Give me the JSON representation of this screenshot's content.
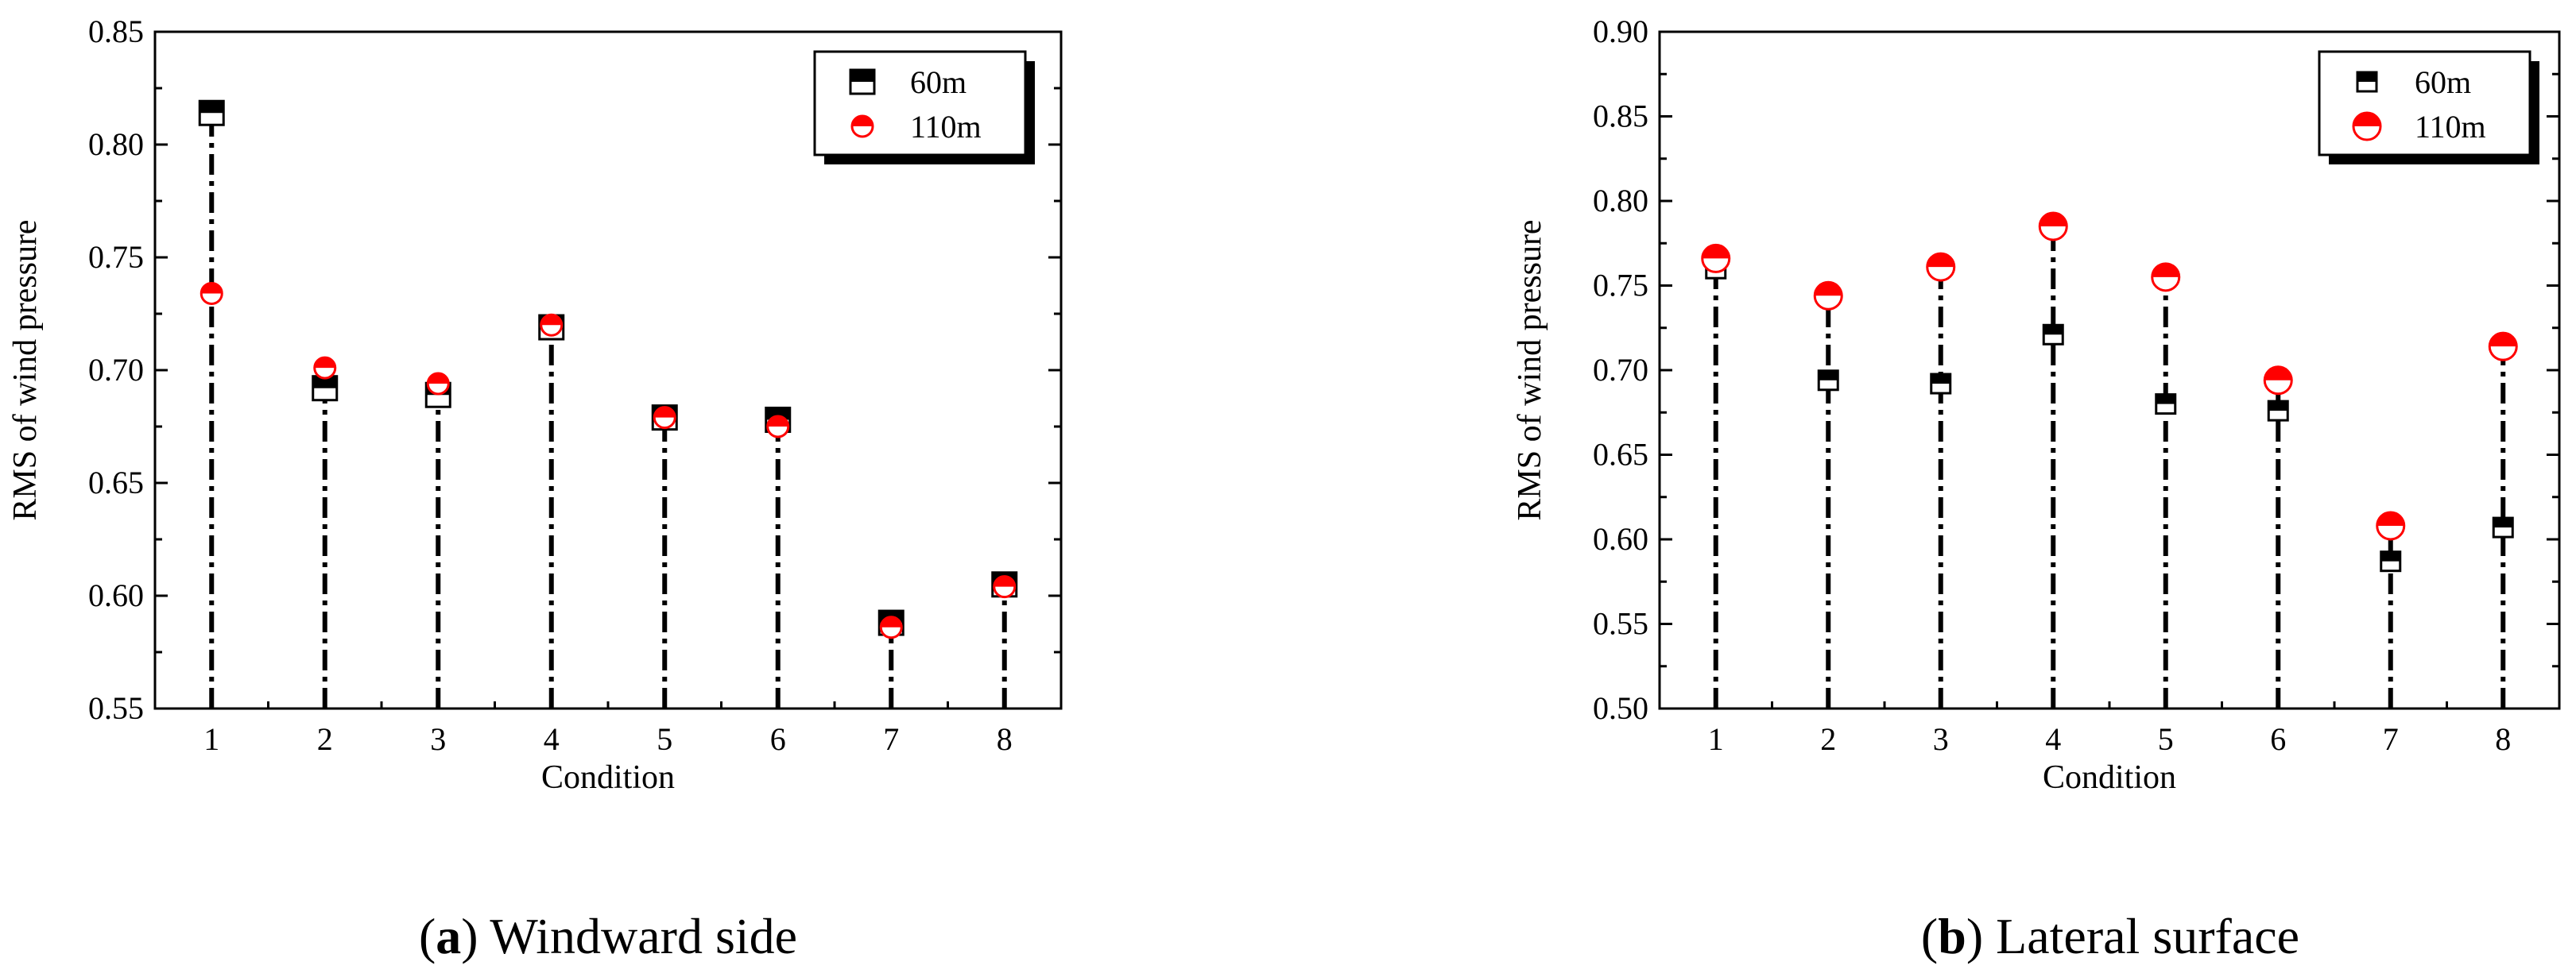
{
  "colors": {
    "series_60m": "#000000",
    "series_110m": "#ff0000",
    "axis": "#000000",
    "background": "#ffffff"
  },
  "chart_data": [
    {
      "type": "scatter",
      "panel": "a",
      "caption_letter": "a",
      "caption_text": "Windward side",
      "xlabel": "Condition",
      "ylabel": "RMS of wind pressure",
      "x": [
        1,
        2,
        3,
        4,
        5,
        6,
        7,
        8
      ],
      "xticks": [
        "1",
        "2",
        "3",
        "4",
        "5",
        "6",
        "7",
        "8"
      ],
      "xlim": [
        0.5,
        8.5
      ],
      "ylim": [
        0.55,
        0.85
      ],
      "yticks": [
        "0.55",
        "0.60",
        "0.65",
        "0.70",
        "0.75",
        "0.80",
        "0.85"
      ],
      "legend_position": "top-right",
      "grid": false,
      "series": [
        {
          "name": "60m",
          "marker": "half-filled-square",
          "values": [
            0.814,
            0.692,
            0.689,
            0.719,
            0.679,
            0.678,
            0.588,
            0.605
          ]
        },
        {
          "name": "110m",
          "marker": "half-filled-circle",
          "values": [
            0.734,
            0.701,
            0.694,
            0.72,
            0.679,
            0.675,
            0.586,
            0.604
          ]
        }
      ]
    },
    {
      "type": "scatter",
      "panel": "b",
      "caption_letter": "b",
      "caption_text": "Lateral surface",
      "xlabel": "Condition",
      "ylabel": "RMS of wind pressure",
      "x": [
        1,
        2,
        3,
        4,
        5,
        6,
        7,
        8
      ],
      "xticks": [
        "1",
        "2",
        "3",
        "4",
        "5",
        "6",
        "7",
        "8"
      ],
      "xlim": [
        0.5,
        8.5
      ],
      "ylim": [
        0.5,
        0.9
      ],
      "yticks": [
        "0.50",
        "0.55",
        "0.60",
        "0.65",
        "0.70",
        "0.75",
        "0.80",
        "0.85",
        "0.90"
      ],
      "legend_position": "top-right",
      "grid": false,
      "series": [
        {
          "name": "60m",
          "marker": "half-filled-square",
          "values": [
            0.76,
            0.694,
            0.692,
            0.721,
            0.68,
            0.676,
            0.587,
            0.607
          ]
        },
        {
          "name": "110m",
          "marker": "half-filled-circle",
          "values": [
            0.766,
            0.744,
            0.761,
            0.785,
            0.755,
            0.694,
            0.608,
            0.714
          ]
        }
      ]
    }
  ]
}
